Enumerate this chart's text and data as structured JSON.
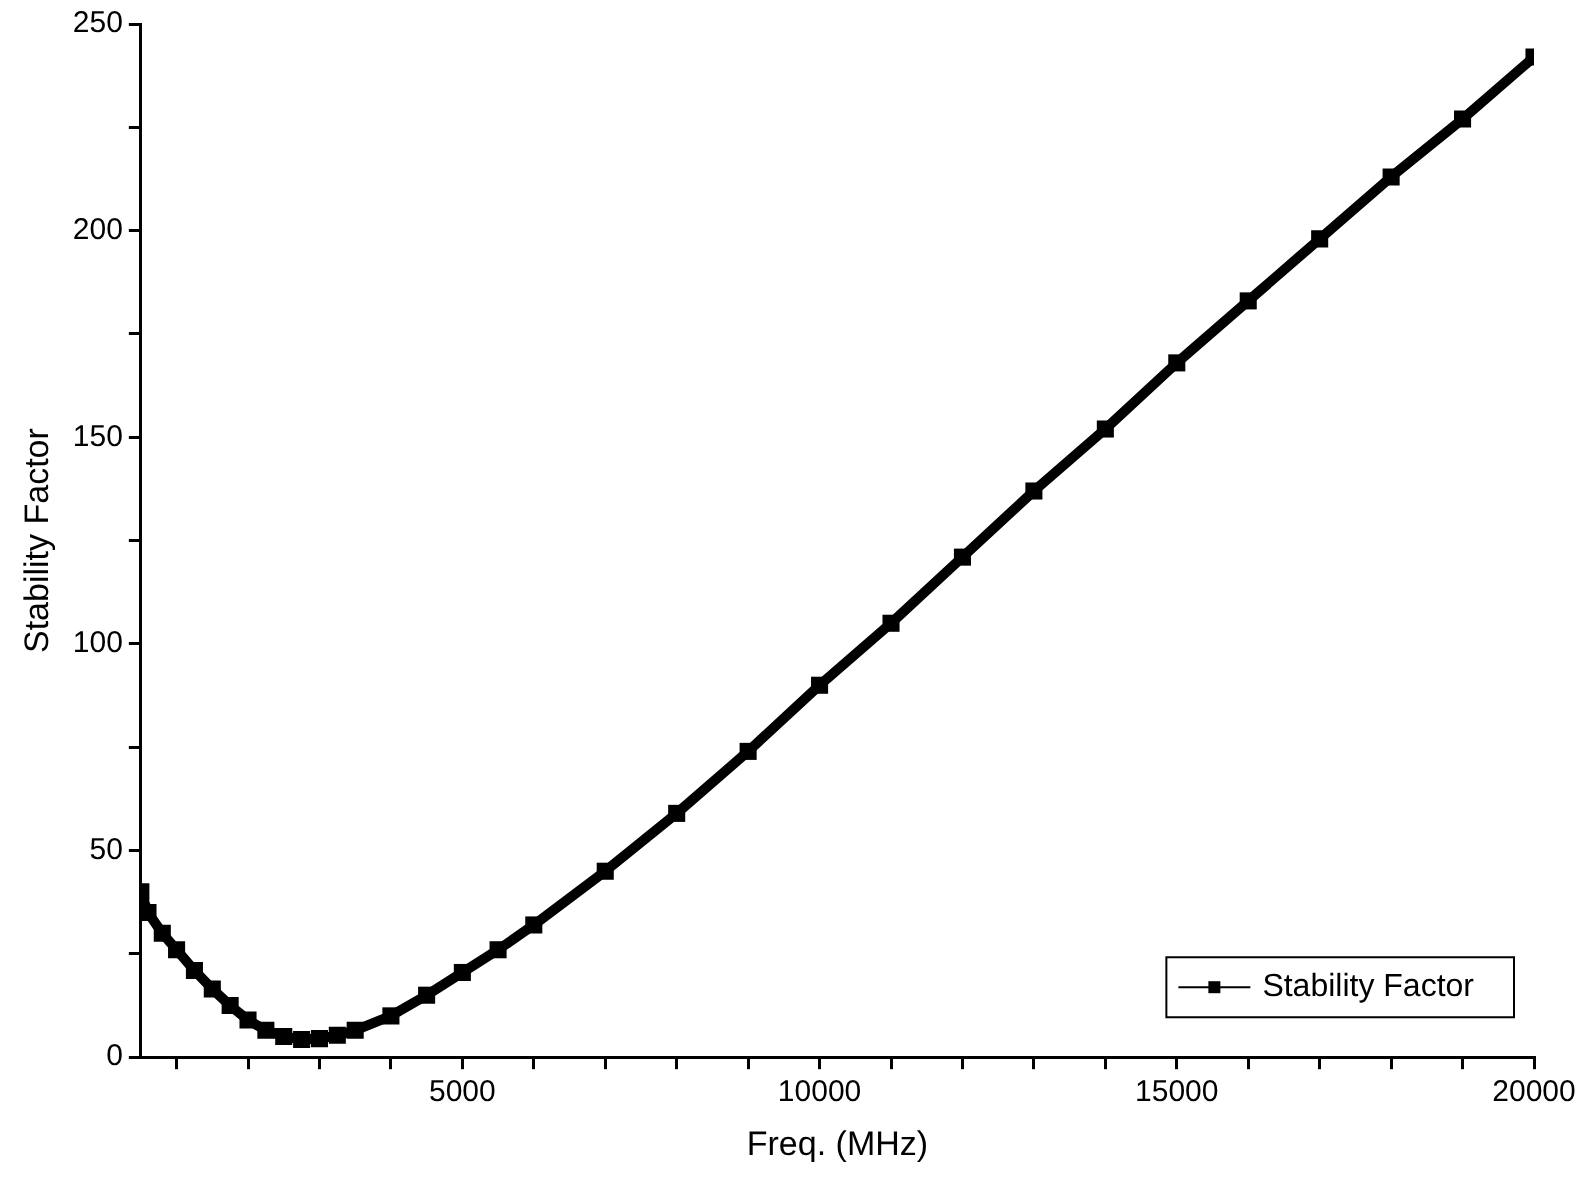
{
  "chart_data": {
    "type": "line",
    "xlabel": "Freq. (MHz)",
    "ylabel": "Stability Factor",
    "x": [
      500,
      600,
      800,
      1000,
      1250,
      1500,
      1750,
      2000,
      2250,
      2500,
      2750,
      3000,
      3250,
      3500,
      4000,
      4500,
      5000,
      5500,
      6000,
      7000,
      8000,
      9000,
      10000,
      11000,
      12000,
      13000,
      14000,
      15000,
      16000,
      17000,
      18000,
      19000,
      20000
    ],
    "series": [
      {
        "name": "Stability Factor",
        "color": "#000000",
        "values": [
          40,
          35,
          30,
          26,
          21,
          16.5,
          12.5,
          9,
          6.5,
          5,
          4.3,
          4.5,
          5.3,
          6.5,
          10,
          15,
          20.5,
          26,
          32,
          45,
          59,
          74,
          90,
          105,
          121,
          137,
          152,
          168,
          183,
          198,
          213,
          227,
          242
        ]
      }
    ],
    "xlim": [
      500,
      20000
    ],
    "xticks": [
      {
        "value": 1000,
        "label": null
      },
      {
        "value": 2000,
        "label": null
      },
      {
        "value": 3000,
        "label": null
      },
      {
        "value": 4000,
        "label": null
      },
      5000,
      {
        "value": 6000,
        "label": null
      },
      {
        "value": 7000,
        "label": null
      },
      {
        "value": 8000,
        "label": null
      },
      {
        "value": 9000,
        "label": null
      },
      10000,
      {
        "value": 11000,
        "label": null
      },
      {
        "value": 12000,
        "label": null
      },
      {
        "value": 13000,
        "label": null
      },
      {
        "value": 14000,
        "label": null
      },
      15000,
      {
        "value": 16000,
        "label": null
      },
      {
        "value": 17000,
        "label": null
      },
      {
        "value": 18000,
        "label": null
      },
      {
        "value": 19000,
        "label": null
      },
      20000
    ],
    "ylim": [
      0,
      250
    ],
    "yticks": [
      0,
      {
        "value": 25,
        "label": null
      },
      50,
      {
        "value": 75,
        "label": null
      },
      100,
      {
        "value": 125,
        "label": null
      },
      150,
      {
        "value": 175,
        "label": null
      },
      200,
      {
        "value": 225,
        "label": null
      },
      250
    ],
    "grid": false,
    "legend": "bottom right",
    "marker": "square",
    "line_style": "solid"
  }
}
